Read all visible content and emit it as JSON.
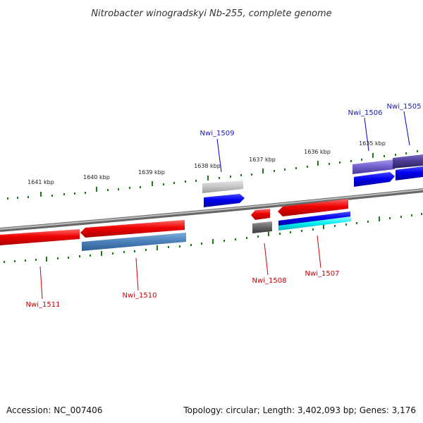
{
  "title": "Nitrobacter winogradskyi Nb-255, complete genome",
  "footer": {
    "accession": "Accession: NC_007406",
    "topology": "Topology: circular; Length: 3,402,093 bp; Genes: 3,176"
  },
  "ticks": [
    "1641 kbp",
    "1640 kbp",
    "1639 kbp",
    "1638 kbp",
    "1637 kbp",
    "1636 kbp",
    "1635 kbp"
  ],
  "genes_top": [
    "Nwi_1509",
    "Nwi_1506",
    "Nwi_1505"
  ],
  "genes_bottom": [
    "Nwi_1511",
    "Nwi_1510",
    "Nwi_1508",
    "Nwi_1507"
  ],
  "colors": {
    "forward_strand": "#0000ee",
    "reverse_strand": "#ee0000",
    "tick": "#1a7a1a",
    "backbone": "#888888"
  }
}
